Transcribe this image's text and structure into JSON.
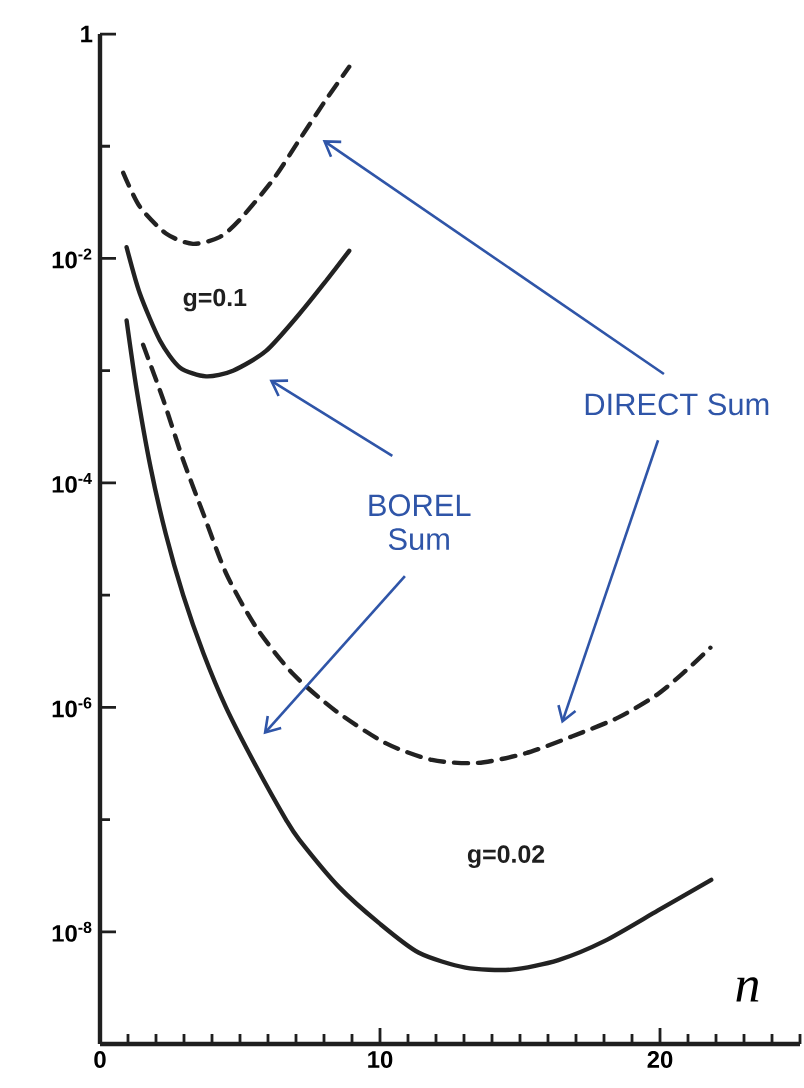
{
  "chart_data": {
    "type": "line",
    "log": "y",
    "xlabel": "n",
    "xlim": [
      0,
      25
    ],
    "ylim": [
      1e-09,
      1
    ],
    "xticks": [
      0,
      {
        "value": 1,
        "label": null
      },
      {
        "value": 2,
        "label": null
      },
      {
        "value": 3,
        "label": null
      },
      {
        "value": 4,
        "label": null
      },
      {
        "value": 5,
        "label": null
      },
      {
        "value": 6,
        "label": null
      },
      {
        "value": 7,
        "label": null
      },
      {
        "value": 8,
        "label": null
      },
      {
        "value": 9,
        "label": null
      },
      10,
      {
        "value": 11,
        "label": null
      },
      {
        "value": 12,
        "label": null
      },
      {
        "value": 13,
        "label": null
      },
      {
        "value": 14,
        "label": null
      },
      {
        "value": 15,
        "label": null
      },
      {
        "value": 16,
        "label": null
      },
      {
        "value": 17,
        "label": null
      },
      {
        "value": 18,
        "label": null
      },
      {
        "value": 19,
        "label": null
      },
      20,
      {
        "value": 21,
        "label": null
      },
      {
        "value": 22,
        "label": null
      },
      {
        "value": 23,
        "label": null
      },
      {
        "value": 24,
        "label": null
      },
      {
        "value": 25,
        "label": null
      }
    ],
    "yticks": [
      1,
      {
        "value": 0.1,
        "label": null
      },
      {
        "value": 0.01,
        "label": "10$^{-2}$"
      },
      {
        "value": 0.001,
        "label": null
      },
      {
        "value": 0.0001,
        "label": "10$^{-4}$"
      },
      {
        "value": 1e-05,
        "label": null
      },
      {
        "value": 1e-06,
        "label": "10$^{-6}$"
      },
      {
        "value": 1e-07,
        "label": null
      },
      {
        "value": 1e-08,
        "label": "10$^{-8}$"
      },
      {
        "value": 1e-09,
        "label": null
      }
    ],
    "series": [
      {
        "color": "#222222",
        "line_style": "dashed",
        "x": [
          0.83,
          1.42,
          2.37,
          3.32,
          4.27,
          4.98,
          6.17,
          7.12,
          8.07,
          8.9
        ],
        "values": [
          0.058,
          0.029,
          0.0166,
          0.0135,
          0.0155,
          0.022,
          0.05,
          0.114,
          0.26,
          0.51
        ]
      },
      {
        "color": "#222222",
        "line_style": "solid",
        "x": [
          0.95,
          1.42,
          2.14,
          2.85,
          3.79,
          4.75,
          5.93,
          7.12,
          8.07,
          8.9
        ],
        "values": [
          0.0126,
          0.0049,
          0.00186,
          0.00107,
          0.00089,
          0.001,
          0.0015,
          0.0032,
          0.0063,
          0.0117
        ]
      },
      {
        "color": "#222222",
        "line_style": "dashed",
        "x": [
          1.54,
          2.26,
          2.97,
          3.68,
          4.51,
          5.57,
          6.88,
          8.42,
          10.2,
          11.86,
          13.5,
          15.2,
          16.85,
          18.5,
          19.9,
          20.9,
          21.8
        ],
        "values": [
          0.0017,
          0.00055,
          0.00016,
          5.4e-05,
          1.55e-05,
          5.2e-06,
          2e-06,
          9.3e-07,
          4.8e-07,
          3.4e-07,
          3.2e-07,
          3.9e-07,
          5.5e-07,
          8.1e-07,
          1.3e-06,
          2.1e-06,
          3.4e-06
        ]
      },
      {
        "color": "#222222",
        "line_style": "solid",
        "x": [
          0.95,
          1.3,
          1.8,
          2.35,
          2.97,
          3.7,
          4.5,
          5.57,
          6.64,
          7.12,
          8.54,
          9.96,
          11.39,
          13.05,
          14.7,
          16.37,
          18.03,
          19.93,
          21.83
        ],
        "values": [
          0.0028,
          0.0007,
          0.00014,
          3.5e-05,
          1e-05,
          3e-06,
          1e-06,
          3e-07,
          1e-07,
          6.6e-08,
          2.5e-08,
          1.2e-08,
          6.5e-09,
          4.8e-09,
          4.6e-09,
          5.6e-09,
          8.3e-09,
          1.55e-08,
          2.9e-08
        ]
      }
    ],
    "annotations": [
      "g=0.1",
      "g=0.02",
      "DIRECT Sum",
      "BOREL Sum"
    ]
  }
}
